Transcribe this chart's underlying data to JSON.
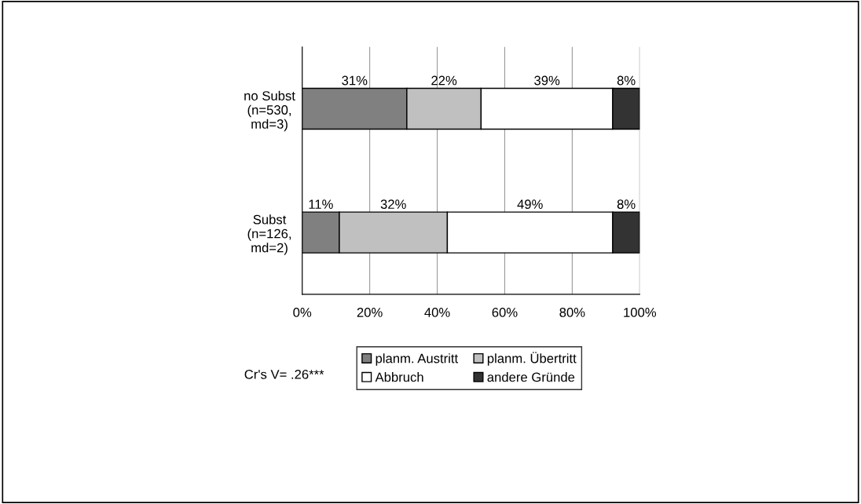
{
  "chart_data": {
    "type": "bar",
    "orientation": "horizontal",
    "stacked": true,
    "categories": [
      "no Subst\n(n=530,\nmd=3)",
      "Subst\n(n=126,\nmd=2)"
    ],
    "series": [
      {
        "name": "planm. Austritt",
        "color": "#808080",
        "values": [
          31,
          11
        ],
        "value_labels": [
          "31%",
          "11%"
        ]
      },
      {
        "name": "planm. Übertritt",
        "color": "#c0c0c0",
        "values": [
          22,
          32
        ],
        "value_labels": [
          "22%",
          "32%"
        ]
      },
      {
        "name": "Abbruch",
        "color": "#ffffff",
        "values": [
          39,
          49
        ],
        "value_labels": [
          "39%",
          "49%"
        ]
      },
      {
        "name": "andere Gründe",
        "color": "#333333",
        "values": [
          8,
          8
        ],
        "value_labels": [
          "8%",
          "8%"
        ]
      }
    ],
    "xlim": [
      0,
      100
    ],
    "xticks": [
      {
        "value": 0,
        "label": "0%"
      },
      {
        "value": 20,
        "label": "20%"
      },
      {
        "value": 40,
        "label": "40%"
      },
      {
        "value": 60,
        "label": "60%"
      },
      {
        "value": 80,
        "label": "80%"
      },
      {
        "value": 100,
        "label": "100%"
      }
    ],
    "grid": "x",
    "legend": "bottom",
    "annotations": [
      "Cr's V= .26***"
    ]
  }
}
